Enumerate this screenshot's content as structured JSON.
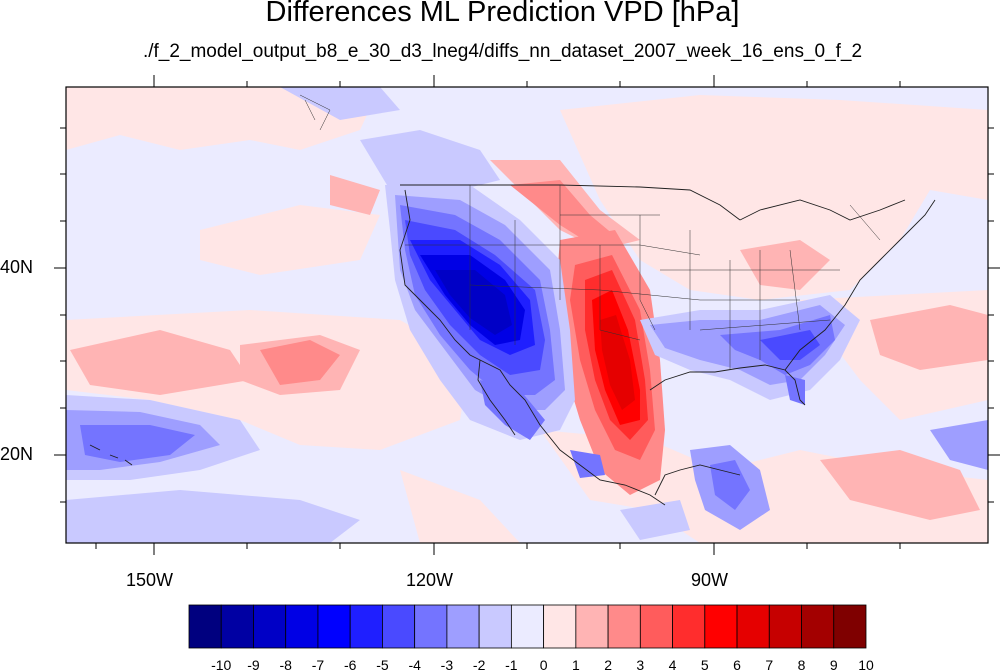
{
  "title": "Differences ML Prediction VPD [hPa]",
  "subtitle": "./f_2_model_output_b8_e_30_d3_lneg4/diffs_nn_dataset_2007_week_16_ens_0_f_2",
  "axes": {
    "lat_labels": [
      "40N",
      "20N"
    ],
    "lon_labels": [
      "150W",
      "120W",
      "90W"
    ]
  },
  "colorbar": {
    "labels": [
      "-10",
      "-9",
      "-8",
      "-7",
      "-6",
      "-5",
      "-4",
      "-3",
      "-2",
      "-1",
      "0",
      "1",
      "2",
      "3",
      "4",
      "5",
      "6",
      "7",
      "8",
      "9",
      "10"
    ],
    "colors": [
      "#00007f",
      "#0000a3",
      "#0000c6",
      "#0000e5",
      "#0000ff",
      "#1f1fff",
      "#4a4aff",
      "#7474ff",
      "#9e9eff",
      "#c9c9ff",
      "#ebebff",
      "#ffe6e6",
      "#ffb4b4",
      "#ff8a8a",
      "#ff5c5c",
      "#ff2d2d",
      "#ff0000",
      "#e50000",
      "#c60000",
      "#a30000",
      "#7f0000"
    ]
  },
  "colors": {
    "background_field": "#ebebff",
    "coast": "#202020"
  }
}
